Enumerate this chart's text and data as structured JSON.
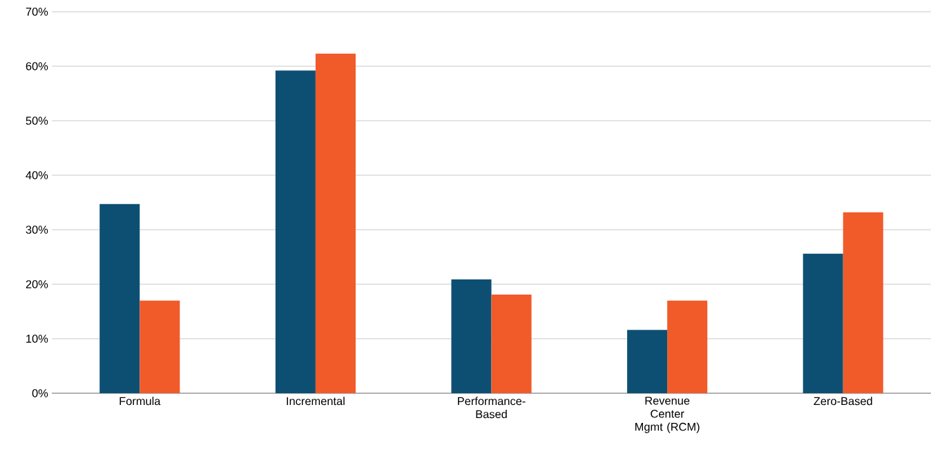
{
  "chart_data": {
    "type": "bar",
    "categories": [
      "Formula",
      "Incremental",
      "Performance-Based",
      "Revenue Center Mgmt (RCM)",
      "Zero-Based"
    ],
    "series": [
      {
        "color": "#0d4f73",
        "values": [
          34.7,
          59.2,
          20.9,
          11.6,
          25.6
        ]
      },
      {
        "color": "#f15a29",
        "values": [
          17.0,
          62.3,
          18.1,
          17.0,
          33.2
        ]
      }
    ],
    "ylim": [
      0,
      70
    ],
    "yticks": [
      {
        "value": 0,
        "label": "0%"
      },
      {
        "value": 10,
        "label": "10%"
      },
      {
        "value": 20,
        "label": "20%"
      },
      {
        "value": 30,
        "label": "30%"
      },
      {
        "value": 40,
        "label": "40%"
      },
      {
        "value": 50,
        "label": "50%"
      },
      {
        "value": 60,
        "label": "60%"
      },
      {
        "value": 70,
        "label": "70%"
      }
    ],
    "grid": "y"
  }
}
